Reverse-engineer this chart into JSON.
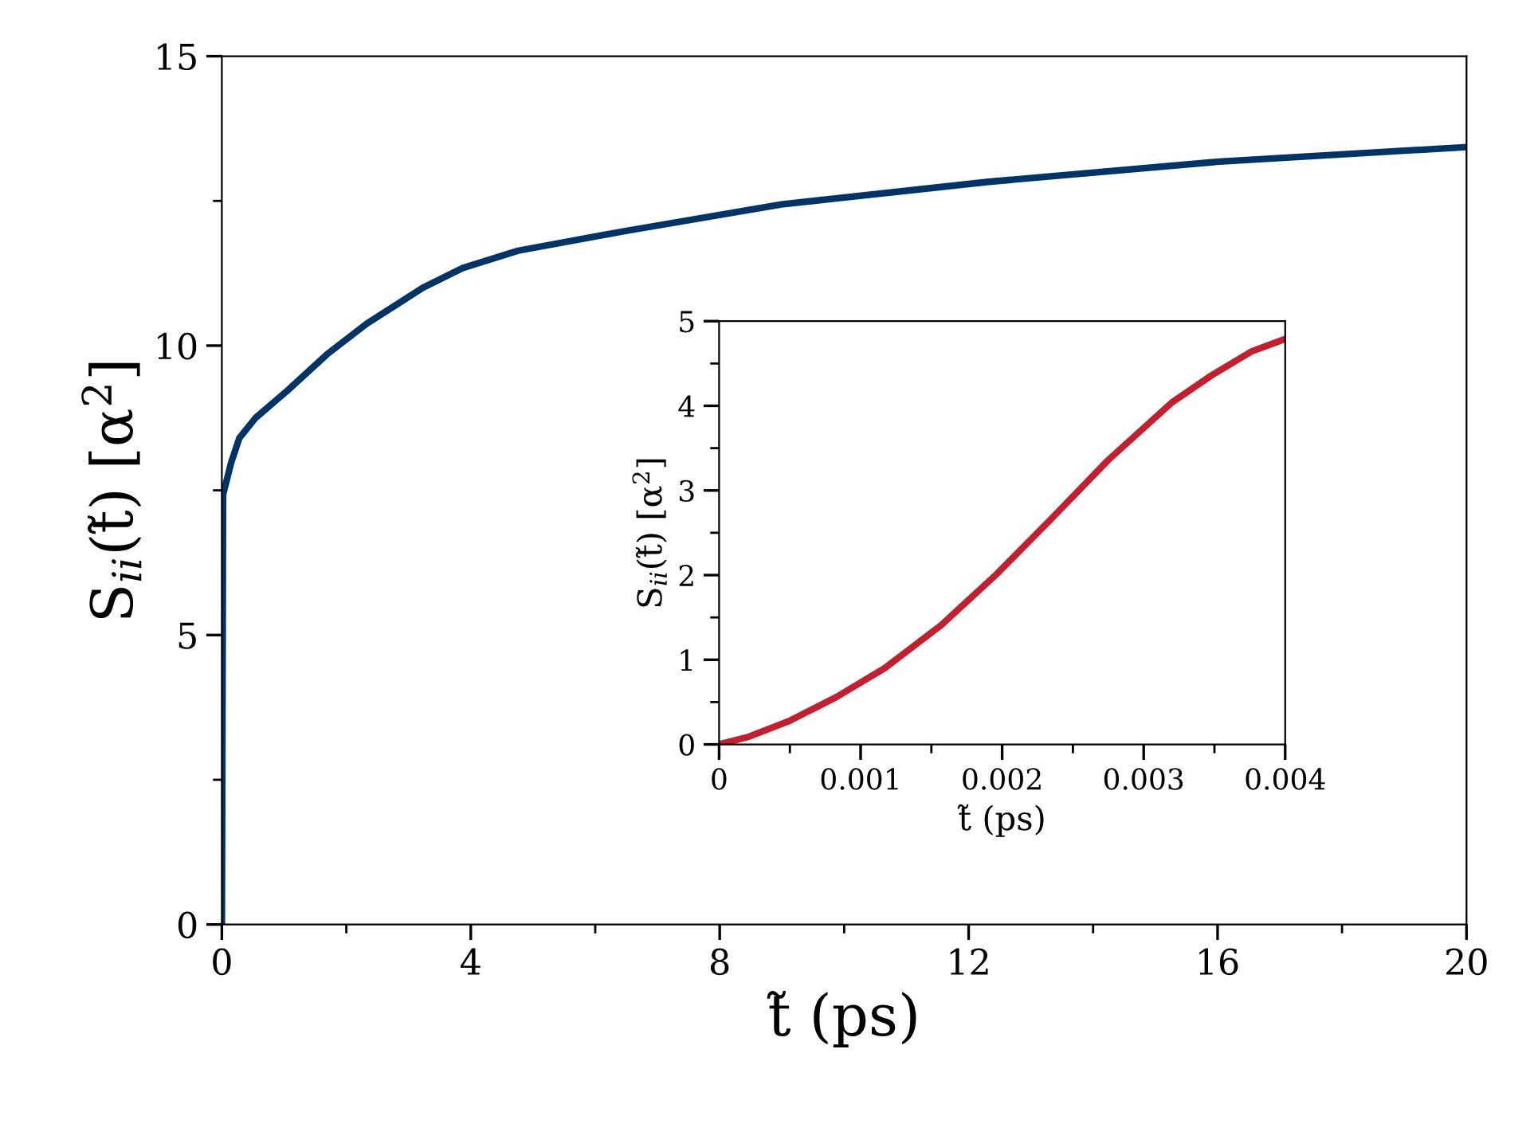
{
  "chart_data": [
    {
      "type": "line",
      "xlabel": "t̃ (ps)",
      "ylabel": "S$_{ii}$(t̃) [α$^{2}$]",
      "xlim": [
        0,
        20
      ],
      "ylim": [
        0,
        15
      ],
      "xticks": [
        0,
        {
          "value": 2,
          "label": null
        },
        4,
        {
          "value": 6,
          "label": null
        },
        8,
        {
          "value": 10,
          "label": null
        },
        12,
        {
          "value": 14,
          "label": null
        },
        16,
        {
          "value": 18,
          "label": null
        },
        20
      ],
      "yticks": [
        0,
        {
          "value": 2.5,
          "label": null
        },
        5,
        {
          "value": 7.5,
          "label": null
        },
        10,
        {
          "value": 12.5,
          "label": null
        },
        15
      ],
      "grid": false,
      "legend": false,
      "line_style": "solid",
      "series": [
        {
          "color": "#003366",
          "x": [
            0,
            0.02,
            0.15,
            0.28,
            0.54,
            1.05,
            1.69,
            2.33,
            3.23,
            3.87,
            4.76,
            6.43,
            8.99,
            12.32,
            16.03,
            20
          ],
          "values": [
            0,
            7.43,
            7.98,
            8.4,
            8.75,
            9.22,
            9.85,
            10.38,
            11.0,
            11.34,
            11.64,
            11.97,
            12.44,
            12.83,
            13.18,
            13.43
          ]
        }
      ]
    },
    {
      "type": "line",
      "xlabel": "t̃ (ps)",
      "ylabel": "S$_{ii}$(t̃) [α$^{2}$]",
      "xlim": [
        0,
        0.004
      ],
      "ylim": [
        0,
        5
      ],
      "xticks": [
        0,
        {
          "value": 0.0005,
          "label": null
        },
        0.001,
        {
          "value": 0.0015,
          "label": null
        },
        0.002,
        {
          "value": 0.0025,
          "label": null
        },
        0.003,
        {
          "value": 0.0035,
          "label": null
        },
        0.004
      ],
      "yticks": [
        0,
        {
          "value": 0.5,
          "label": null
        },
        1,
        {
          "value": 1.5,
          "label": null
        },
        2,
        {
          "value": 2.5,
          "label": null
        },
        3,
        {
          "value": 3.5,
          "label": null
        },
        4,
        {
          "value": 4.5,
          "label": null
        },
        5
      ],
      "grid": false,
      "legend": false,
      "line_style": "solid",
      "series": [
        {
          "color": "#c0202f",
          "x": [
            0,
            0.00021,
            0.0005,
            0.00083,
            0.00117,
            0.00157,
            0.00196,
            0.00235,
            0.00275,
            0.0032,
            0.00348,
            0.00376,
            0.004
          ],
          "values": [
            0,
            0.09,
            0.28,
            0.56,
            0.9,
            1.41,
            2.01,
            2.67,
            3.36,
            4.04,
            4.36,
            4.64,
            4.79
          ]
        }
      ]
    }
  ]
}
